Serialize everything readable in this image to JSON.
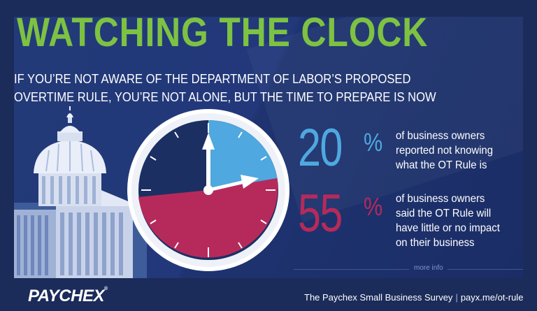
{
  "title": "WATCHING THE CLOCK",
  "subtitle": [
    "IF YOU’RE NOT AWARE OF THE DEPARTMENT OF LABOR’S PROPOSED",
    "OVERTIME RULE, YOU’RE NOT ALONE, BUT THE TIME TO PREPARE IS NOW"
  ],
  "stats": [
    {
      "value": "20",
      "percent_sign": "%",
      "color": "#4fa8df",
      "lines": [
        "of business owners",
        "reported not knowing",
        "what the OT Rule is"
      ]
    },
    {
      "value": "55",
      "percent_sign": "%",
      "color": "#b62a5b",
      "lines": [
        "of business owners",
        "said the OT Rule will",
        "have little or no impact",
        "on their business"
      ]
    }
  ],
  "more_info": "more info",
  "logo": {
    "text": "PAYCHEX",
    "mark": "®"
  },
  "footer": {
    "survey": "The Paychex Small Business Survey",
    "separator": "|",
    "link": "payx.me/ot-rule"
  },
  "colors": {
    "background": "#1b2b5a",
    "title_green": "#7dc242",
    "clock_blue": "#4fa8df",
    "clock_red": "#b62a5b",
    "clock_face": "#1c2f63"
  },
  "icons": [
    "capitol-building-icon",
    "clock-icon"
  ]
}
